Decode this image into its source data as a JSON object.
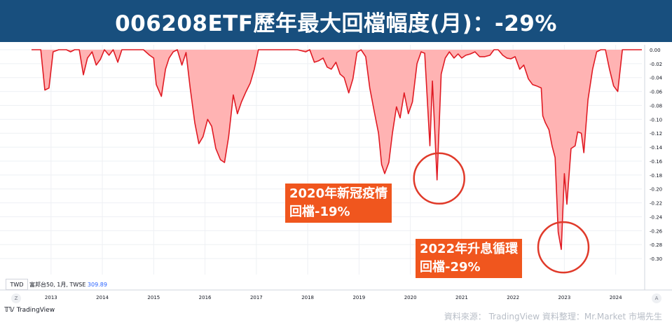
{
  "header": {
    "title": "006208ETF歷年最大回檔幅度(月)：-29%"
  },
  "annotations": [
    {
      "line1": "2020年新冠疫情",
      "line2": "回檔-19%"
    },
    {
      "line1": "2022年升息循環",
      "line2": "回檔-29%"
    }
  ],
  "symbol_bar": {
    "currency": "TWD",
    "symbol": "富邦台50, 1月, TWSE",
    "price": "309.89"
  },
  "axis_buttons": {
    "left": "Z",
    "right": "A"
  },
  "branding": {
    "logo": "TradingView"
  },
  "source": {
    "text": "資料來源： TradingView   資料整理：Mr.Market 市場先生"
  },
  "colors": {
    "title_bg": "#184f7e",
    "area_fill": "#ffb3b3",
    "line": "#e01b24",
    "annotation_bg": "#f0561e",
    "circle": "#e03a2a"
  },
  "chart_data": {
    "type": "area",
    "title": "",
    "xlabel": "",
    "ylabel": "",
    "ylim": [
      -0.31,
      0.0
    ],
    "xlim": [
      2012.62,
      2024.51
    ],
    "y_ticks": [
      "0.00",
      "-0.02",
      "-0.04",
      "-0.06",
      "-0.08",
      "-0.10",
      "-0.12",
      "-0.14",
      "-0.16",
      "-0.18",
      "-0.20",
      "-0.22",
      "-0.24",
      "-0.26",
      "-0.28",
      "-0.30"
    ],
    "x_ticks": [
      "2013",
      "2014",
      "2015",
      "2016",
      "2017",
      "2018",
      "2019",
      "2020",
      "2021",
      "2022",
      "2023",
      "2024"
    ],
    "grid": true,
    "series": [
      {
        "values": [
          [
            2012.62,
            0.0
          ],
          [
            2012.72,
            0.0
          ],
          [
            2012.8,
            0.0
          ],
          [
            2012.88,
            -0.058
          ],
          [
            2012.96,
            -0.055
          ],
          [
            2013.04,
            -0.003
          ],
          [
            2013.15,
            0.0
          ],
          [
            2013.3,
            0.0
          ],
          [
            2013.38,
            -0.003
          ],
          [
            2013.46,
            0.0
          ],
          [
            2013.55,
            0.0
          ],
          [
            2013.63,
            -0.036
          ],
          [
            2013.71,
            -0.012
          ],
          [
            2013.8,
            -0.003
          ],
          [
            2013.88,
            -0.022
          ],
          [
            2013.96,
            -0.014
          ],
          [
            2014.04,
            0.0
          ],
          [
            2014.13,
            -0.008
          ],
          [
            2014.21,
            0.0
          ],
          [
            2014.3,
            -0.018
          ],
          [
            2014.38,
            0.0
          ],
          [
            2014.46,
            0.0
          ],
          [
            2014.6,
            0.0
          ],
          [
            2014.71,
            0.0
          ],
          [
            2014.8,
            0.0
          ],
          [
            2014.92,
            -0.008
          ],
          [
            2015.0,
            -0.012
          ],
          [
            2015.05,
            -0.05
          ],
          [
            2015.15,
            -0.067
          ],
          [
            2015.23,
            -0.028
          ],
          [
            2015.3,
            -0.012
          ],
          [
            2015.38,
            -0.003
          ],
          [
            2015.46,
            0.0
          ],
          [
            2015.55,
            -0.022
          ],
          [
            2015.63,
            -0.004
          ],
          [
            2015.71,
            -0.055
          ],
          [
            2015.8,
            -0.105
          ],
          [
            2015.88,
            -0.135
          ],
          [
            2015.96,
            -0.125
          ],
          [
            2016.05,
            -0.1
          ],
          [
            2016.13,
            -0.11
          ],
          [
            2016.21,
            -0.142
          ],
          [
            2016.3,
            -0.158
          ],
          [
            2016.38,
            -0.162
          ],
          [
            2016.46,
            -0.125
          ],
          [
            2016.55,
            -0.065
          ],
          [
            2016.63,
            -0.092
          ],
          [
            2016.71,
            -0.075
          ],
          [
            2016.8,
            -0.06
          ],
          [
            2016.88,
            -0.048
          ],
          [
            2016.96,
            -0.028
          ],
          [
            2017.04,
            0.0
          ],
          [
            2017.2,
            0.0
          ],
          [
            2017.5,
            0.0
          ],
          [
            2017.8,
            0.0
          ],
          [
            2017.96,
            -0.003
          ],
          [
            2018.04,
            0.0
          ],
          [
            2018.13,
            -0.018
          ],
          [
            2018.21,
            -0.016
          ],
          [
            2018.3,
            -0.012
          ],
          [
            2018.38,
            -0.025
          ],
          [
            2018.46,
            -0.028
          ],
          [
            2018.55,
            -0.018
          ],
          [
            2018.63,
            -0.035
          ],
          [
            2018.71,
            -0.04
          ],
          [
            2018.8,
            -0.062
          ],
          [
            2018.88,
            -0.042
          ],
          [
            2018.96,
            -0.004
          ],
          [
            2019.04,
            0.0
          ],
          [
            2019.13,
            -0.01
          ],
          [
            2019.21,
            -0.055
          ],
          [
            2019.3,
            -0.09
          ],
          [
            2019.38,
            -0.12
          ],
          [
            2019.44,
            -0.165
          ],
          [
            2019.5,
            -0.178
          ],
          [
            2019.58,
            -0.162
          ],
          [
            2019.65,
            -0.12
          ],
          [
            2019.73,
            -0.082
          ],
          [
            2019.8,
            -0.098
          ],
          [
            2019.88,
            -0.062
          ],
          [
            2019.96,
            -0.092
          ],
          [
            2020.04,
            -0.075
          ],
          [
            2020.13,
            -0.02
          ],
          [
            2020.21,
            -0.003
          ],
          [
            2020.28,
            -0.005
          ],
          [
            2020.38,
            -0.138
          ],
          [
            2020.43,
            -0.045
          ],
          [
            2020.52,
            -0.187
          ],
          [
            2020.6,
            -0.035
          ],
          [
            2020.68,
            -0.012
          ],
          [
            2020.76,
            -0.003
          ],
          [
            2020.85,
            -0.012
          ],
          [
            2020.93,
            -0.006
          ],
          [
            2021.0,
            -0.012
          ],
          [
            2021.08,
            -0.008
          ],
          [
            2021.17,
            -0.006
          ],
          [
            2021.26,
            -0.003
          ],
          [
            2021.35,
            -0.01
          ],
          [
            2021.45,
            -0.01
          ],
          [
            2021.55,
            -0.008
          ],
          [
            2021.63,
            0.0
          ],
          [
            2021.71,
            0.0
          ],
          [
            2021.8,
            -0.008
          ],
          [
            2021.88,
            -0.012
          ],
          [
            2021.96,
            -0.013
          ],
          [
            2022.04,
            -0.01
          ],
          [
            2022.13,
            -0.028
          ],
          [
            2022.21,
            -0.022
          ],
          [
            2022.3,
            -0.042
          ],
          [
            2022.38,
            -0.05
          ],
          [
            2022.46,
            -0.052
          ],
          [
            2022.55,
            -0.055
          ],
          [
            2022.58,
            -0.095
          ],
          [
            2022.63,
            -0.105
          ],
          [
            2022.7,
            -0.115
          ],
          [
            2022.76,
            -0.138
          ],
          [
            2022.82,
            -0.155
          ],
          [
            2022.88,
            -0.262
          ],
          [
            2022.94,
            -0.287
          ],
          [
            2023.0,
            -0.178
          ],
          [
            2023.05,
            -0.222
          ],
          [
            2023.13,
            -0.142
          ],
          [
            2023.21,
            -0.138
          ],
          [
            2023.26,
            -0.118
          ],
          [
            2023.33,
            -0.12
          ],
          [
            2023.38,
            -0.148
          ],
          [
            2023.46,
            -0.072
          ],
          [
            2023.55,
            -0.028
          ],
          [
            2023.63,
            -0.003
          ],
          [
            2023.71,
            0.0
          ],
          [
            2023.8,
            0.0
          ],
          [
            2023.88,
            -0.028
          ],
          [
            2023.96,
            -0.052
          ],
          [
            2024.04,
            -0.06
          ],
          [
            2024.13,
            0.0
          ],
          [
            2024.2,
            0.0
          ],
          [
            2024.3,
            0.0
          ],
          [
            2024.4,
            0.0
          ],
          [
            2024.51,
            0.0
          ]
        ]
      }
    ]
  }
}
